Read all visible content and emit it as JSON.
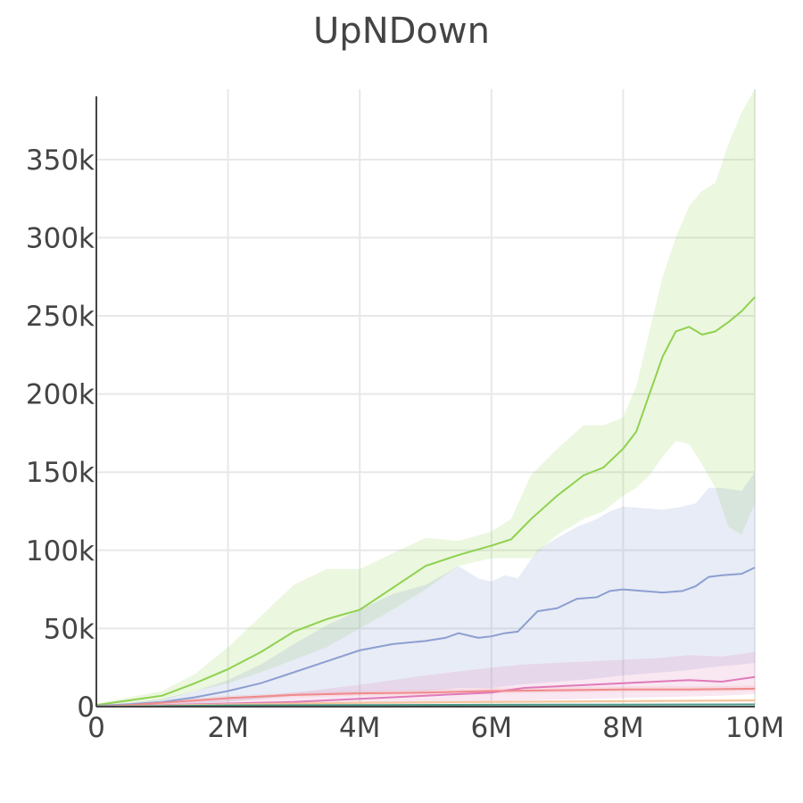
{
  "chart_data": {
    "type": "line",
    "title": "UpNDown",
    "xlabel": "",
    "ylabel": "",
    "xlim": [
      0,
      10000000
    ],
    "ylim": [
      0,
      395000
    ],
    "grid": true,
    "legend": "none",
    "x_ticks": [
      {
        "value": 0,
        "label": "0"
      },
      {
        "value": 2000000,
        "label": "2M"
      },
      {
        "value": 4000000,
        "label": "4M"
      },
      {
        "value": 6000000,
        "label": "6M"
      },
      {
        "value": 8000000,
        "label": "8M"
      },
      {
        "value": 10000000,
        "label": "10M"
      }
    ],
    "y_ticks": [
      {
        "value": 0,
        "label": "0"
      },
      {
        "value": 50000,
        "label": "50k"
      },
      {
        "value": 100000,
        "label": "100k"
      },
      {
        "value": 150000,
        "label": "150k"
      },
      {
        "value": 200000,
        "label": "200k"
      },
      {
        "value": 250000,
        "label": "250k"
      },
      {
        "value": 300000,
        "label": "300k"
      },
      {
        "value": 350000,
        "label": "350k"
      }
    ],
    "series": [
      {
        "color": "#8fd14f",
        "band_color": "rgba(143,209,79,0.18)",
        "x": [
          0,
          500000,
          1000000,
          1500000,
          2000000,
          2500000,
          3000000,
          3500000,
          4000000,
          4500000,
          5000000,
          5500000,
          6000000,
          6300000,
          6600000,
          7000000,
          7400000,
          7700000,
          8000000,
          8200000,
          8400000,
          8600000,
          8800000,
          9000000,
          9200000,
          9400000,
          9600000,
          9800000,
          10000000
        ],
        "values": [
          1000,
          4000,
          7000,
          15000,
          24000,
          35000,
          48000,
          56000,
          62000,
          76000,
          90000,
          97000,
          103000,
          107000,
          120000,
          135000,
          148000,
          153000,
          165000,
          176000,
          200000,
          224000,
          240000,
          243000,
          238000,
          240000,
          246000,
          253000,
          262000
        ],
        "upper": [
          2000,
          6000,
          10000,
          21000,
          38000,
          58000,
          78000,
          88000,
          88000,
          98000,
          108000,
          106000,
          112000,
          120000,
          148000,
          165000,
          180000,
          180000,
          185000,
          205000,
          240000,
          275000,
          300000,
          320000,
          330000,
          335000,
          360000,
          380000,
          395000
        ],
        "lower": [
          0,
          2000,
          4000,
          10000,
          15000,
          22000,
          30000,
          38000,
          50000,
          62000,
          75000,
          90000,
          95000,
          95000,
          95000,
          110000,
          120000,
          125000,
          135000,
          140000,
          148000,
          160000,
          170000,
          168000,
          155000,
          140000,
          115000,
          110000,
          130000
        ]
      },
      {
        "color": "#8c9fd1",
        "band_color": "rgba(140,159,209,0.2)",
        "x": [
          0,
          500000,
          1000000,
          1500000,
          2000000,
          2500000,
          3000000,
          3500000,
          4000000,
          4500000,
          5000000,
          5300000,
          5500000,
          5800000,
          6000000,
          6200000,
          6400000,
          6700000,
          7000000,
          7300000,
          7600000,
          7800000,
          8000000,
          8300000,
          8600000,
          8900000,
          9100000,
          9300000,
          9500000,
          9800000,
          10000000
        ],
        "values": [
          500,
          1500,
          3000,
          6000,
          10000,
          15000,
          22000,
          29000,
          36000,
          40000,
          42000,
          44000,
          47000,
          44000,
          45000,
          47000,
          48000,
          61000,
          63000,
          69000,
          70000,
          74000,
          75000,
          74000,
          73000,
          74000,
          77000,
          83000,
          84000,
          85000,
          89000
        ],
        "upper": [
          1000,
          2500,
          5000,
          10000,
          17000,
          27000,
          40000,
          52000,
          62000,
          72000,
          78000,
          85000,
          90000,
          82000,
          80000,
          84000,
          82000,
          100000,
          108000,
          115000,
          120000,
          125000,
          128000,
          127000,
          126000,
          128000,
          130000,
          140000,
          140000,
          138000,
          150000
        ],
        "lower": [
          0,
          500,
          1000,
          2000,
          3000,
          5000,
          7000,
          8000,
          9000,
          10000,
          10000,
          11000,
          12000,
          12000,
          12000,
          13000,
          14000,
          15000,
          16000,
          17000,
          18000,
          19000,
          20000,
          21000,
          22000,
          23000,
          24000,
          25000,
          26000,
          27000,
          28000
        ]
      },
      {
        "color": "#e07ab9",
        "band_color": "rgba(224,122,185,0.18)",
        "x": [
          0,
          1000000,
          2000000,
          3000000,
          4000000,
          5000000,
          6000000,
          6500000,
          7000000,
          7500000,
          8000000,
          8500000,
          9000000,
          9500000,
          10000000
        ],
        "values": [
          0,
          1000,
          2000,
          3000,
          5000,
          7000,
          9000,
          12000,
          13000,
          14000,
          15000,
          16000,
          17000,
          16000,
          19000
        ],
        "upper": [
          0,
          2000,
          5000,
          9000,
          14000,
          20000,
          25000,
          27000,
          28000,
          29000,
          30000,
          31000,
          33000,
          32000,
          35000
        ],
        "lower": [
          0,
          0,
          500,
          1000,
          1500,
          2000,
          3000,
          4000,
          4500,
          5000,
          5500,
          6000,
          6500,
          7000,
          8000
        ]
      },
      {
        "color": "#f08a8a",
        "band_color": "rgba(240,138,138,0.15)",
        "x": [
          0,
          500000,
          1000000,
          1500000,
          2000000,
          3000000,
          4000000,
          5000000,
          6000000,
          7000000,
          8000000,
          9000000,
          10000000
        ],
        "values": [
          0,
          1000,
          2500,
          4000,
          5500,
          7500,
          8500,
          9000,
          10000,
          10500,
          11000,
          11000,
          11500
        ],
        "upper": [
          0,
          1500,
          3500,
          5500,
          7000,
          9000,
          10000,
          11000,
          12000,
          12500,
          13000,
          13000,
          13500
        ],
        "lower": [
          0,
          500,
          1500,
          2500,
          4000,
          6000,
          7000,
          7500,
          8500,
          9000,
          9500,
          9500,
          10000
        ]
      },
      {
        "color": "#f5c49a",
        "band_color": "rgba(245,196,154,0.15)",
        "x": [
          0,
          2000000,
          4000000,
          6000000,
          8000000,
          10000000
        ],
        "values": [
          0,
          1500,
          2500,
          3000,
          3500,
          4000
        ],
        "upper": [
          0,
          2500,
          3500,
          4000,
          4500,
          5000
        ],
        "lower": [
          0,
          500,
          1500,
          2000,
          2500,
          3000
        ]
      },
      {
        "color": "#4a9a8a",
        "band_color": "rgba(74,154,138,0.15)",
        "x": [
          0,
          2000000,
          4000000,
          6000000,
          8000000,
          10000000
        ],
        "values": [
          0,
          800,
          1000,
          1200,
          1300,
          1400
        ],
        "upper": [
          0,
          1200,
          1500,
          1700,
          1800,
          1900
        ],
        "lower": [
          0,
          400,
          600,
          800,
          900,
          1000
        ]
      }
    ]
  }
}
